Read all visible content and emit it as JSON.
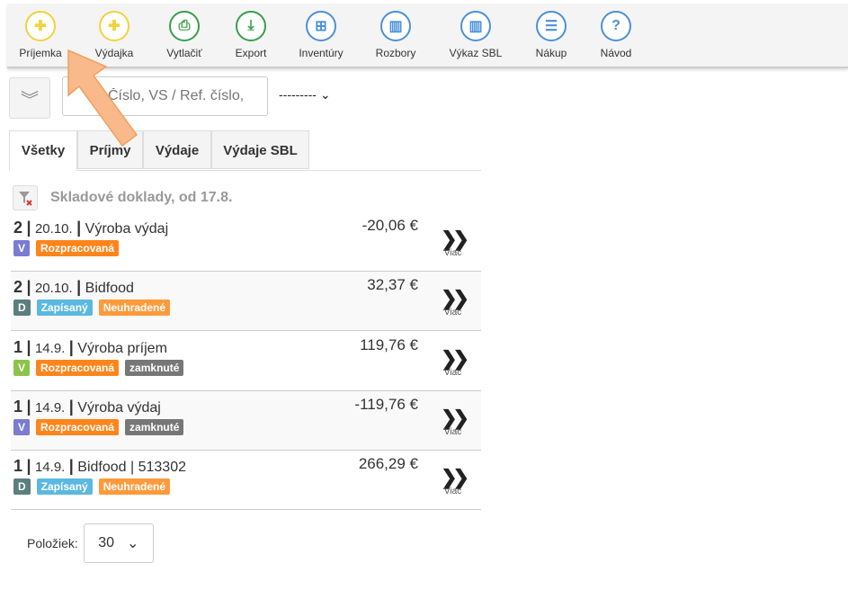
{
  "toolbar": [
    {
      "label": "Príjemka",
      "icon": "plus-icon",
      "glyph": "✚",
      "color": "#f0d43a"
    },
    {
      "label": "Výdajka",
      "icon": "plus-icon",
      "glyph": "✚",
      "color": "#f0d43a"
    },
    {
      "label": "Vytlačiť",
      "icon": "printer-icon",
      "glyph": "⎙",
      "color": "#3a9d4a"
    },
    {
      "label": "Export",
      "icon": "download-xml-icon",
      "glyph": "⤓",
      "color": "#3a9d4a"
    },
    {
      "label": "Inventúry",
      "icon": "boxes-icon",
      "glyph": "⊞",
      "color": "#4a90d9"
    },
    {
      "label": "Rozbory",
      "icon": "bar-chart-icon",
      "glyph": "▥",
      "color": "#4a90d9"
    },
    {
      "label": "Výkaz SBL",
      "icon": "bar-chart-icon",
      "glyph": "▥",
      "color": "#4a90d9"
    },
    {
      "label": "Nákup",
      "icon": "menu-icon",
      "glyph": "☰",
      "color": "#4a90d9"
    },
    {
      "label": "Návod",
      "icon": "help-icon",
      "glyph": "?",
      "color": "#4a90d9"
    }
  ],
  "search": {
    "placeholder": "Číslo, VS / Ref. číslo,"
  },
  "filter_select": "---------",
  "tabs": [
    "Všetky",
    "Príjmy",
    "Výdaje",
    "Výdaje SBL"
  ],
  "heading": "Skladové doklady, od 17.8.",
  "rows": [
    {
      "num": "2",
      "date": "20.10.",
      "name": "Výroba výdaj",
      "amount": "-20,06 €",
      "badges": [
        {
          "t": "V",
          "c": "#7b7bd0"
        },
        {
          "t": "Rozpracovaná",
          "c": "#ff851b"
        }
      ]
    },
    {
      "num": "2",
      "date": "20.10.",
      "name": "Bidfood",
      "amount": "32,37 €",
      "badges": [
        {
          "t": "D",
          "c": "#5b7f80"
        },
        {
          "t": "Zapísaný",
          "c": "#5bb8e0"
        },
        {
          "t": "Neuhradené",
          "c": "#ff9a3c"
        }
      ]
    },
    {
      "num": "1",
      "date": "14.9.",
      "name": "Výroba príjem",
      "amount": "119,76 €",
      "badges": [
        {
          "t": "V",
          "c": "#8cc34a"
        },
        {
          "t": "Rozpracovaná",
          "c": "#ff851b"
        },
        {
          "t": "zamknuté",
          "c": "#777777"
        }
      ]
    },
    {
      "num": "1",
      "date": "14.9.",
      "name": "Výroba výdaj",
      "amount": "-119,76 €",
      "badges": [
        {
          "t": "V",
          "c": "#7b7bd0"
        },
        {
          "t": "Rozpracovaná",
          "c": "#ff851b"
        },
        {
          "t": "zamknuté",
          "c": "#777777"
        }
      ]
    },
    {
      "num": "1",
      "date": "14.9.",
      "name": "Bidfood | 513302",
      "amount": "266,29 €",
      "badges": [
        {
          "t": "D",
          "c": "#5b7f80"
        },
        {
          "t": "Zapísaný",
          "c": "#5bb8e0"
        },
        {
          "t": "Neuhradené",
          "c": "#ff9a3c"
        }
      ]
    }
  ],
  "more_label": "Viac",
  "pager": {
    "label": "Položiek:",
    "value": "30"
  }
}
